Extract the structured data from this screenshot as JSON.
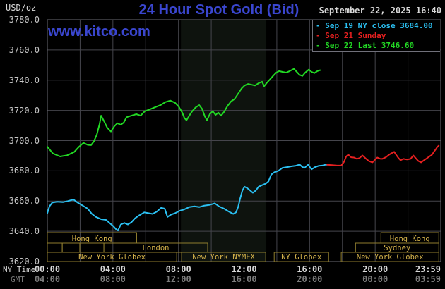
{
  "header": {
    "unit_label": "USD/oz",
    "title": "24 Hour Spot Gold (Bid)",
    "datetime": "September 22, 2025 16:40",
    "watermark": "www.kitco.com"
  },
  "colors": {
    "title_blue": "#3a46cf",
    "sep19_cyan": "#2bc0f2",
    "sep21_red": "#e62020",
    "sep22_green": "#22d824",
    "grid": "#45454c",
    "frame": "#6a6a72",
    "nymex_band": "#0e130e",
    "session_border": "#8f7d2e",
    "session_text": "#d6b44c",
    "axis_text": "#d8d8d8",
    "gmt_text": "#7c7c7c",
    "ylabel_text": "#c8c8c8"
  },
  "legend": {
    "items": [
      {
        "dash": "-",
        "label": " Sep 19 NY close 3684.00",
        "color": "#2bc0f2"
      },
      {
        "dash": "-",
        "label": " Sep 21 Sunday",
        "color": "#e62020"
      },
      {
        "dash": "-",
        "label": " Sep 22 Last 3746.60",
        "color": "#22d824"
      }
    ]
  },
  "axes": {
    "y_ticks": [
      "3780.0",
      "3760.0",
      "3740.0",
      "3720.0",
      "3700.0",
      "3680.0",
      "3660.0",
      "3640.0",
      "3620.0"
    ],
    "x_rows": [
      {
        "label": "NY Time",
        "values": [
          "00:00",
          "04:00",
          "08:00",
          "12:00",
          "16:00",
          "20:00",
          "23:59"
        ]
      },
      {
        "label": "GMT",
        "values": [
          "04:00",
          "08:00",
          "12:00",
          "16:00",
          "20:00",
          "00:00",
          "03:59"
        ]
      }
    ],
    "x_tick_hours": [
      0,
      4,
      8,
      12,
      16,
      20,
      23.98
    ]
  },
  "sessions": {
    "rows": [
      {
        "boxes": [
          {
            "label": "Hong Kong",
            "start": 0,
            "end": 5.45
          },
          {
            "label": "Hong Kong",
            "start": 20.35,
            "end": 23.88
          }
        ]
      },
      {
        "boxes": [
          {
            "label": "",
            "start": 0,
            "end": 0.91
          },
          {
            "label": "",
            "start": 0.91,
            "end": 1.98
          },
          {
            "label": "",
            "start": 1.98,
            "end": 3.45
          },
          {
            "label": "London",
            "start": 3.45,
            "end": 9.78
          },
          {
            "label": "Sydney",
            "start": 18.8,
            "end": 23.88
          }
        ]
      },
      {
        "boxes": [
          {
            "label": "New York Globex",
            "start": 0,
            "end": 7.89
          },
          {
            "label": "New York NYMEX",
            "start": 8.19,
            "end": 13.32
          },
          {
            "label": "NY Globex",
            "start": 13.84,
            "end": 17.16
          },
          {
            "label": "New York Globex",
            "start": 17.93,
            "end": 23.88
          }
        ]
      }
    ]
  },
  "chart_data": {
    "type": "line",
    "title": "24 Hour Spot Gold (Bid)",
    "ylabel": "USD/oz",
    "ylim": [
      3620,
      3780
    ],
    "y_tick_step": 20,
    "x_range_hours": [
      0,
      24
    ],
    "x_axis_label": "NY Time",
    "grid": true,
    "legend_position": "top-right",
    "nymex_session_band_hours": [
      8.15,
      13.36
    ],
    "series": [
      {
        "name": "Sep 19 NY close 3684.00",
        "color": "#2bc0f2",
        "points": [
          [
            0,
            3652
          ],
          [
            0.13,
            3656.5
          ],
          [
            0.3,
            3659
          ],
          [
            0.6,
            3659.5
          ],
          [
            0.95,
            3659.3
          ],
          [
            1.25,
            3660
          ],
          [
            1.59,
            3661
          ],
          [
            1.85,
            3659
          ],
          [
            2.16,
            3657
          ],
          [
            2.46,
            3655
          ],
          [
            2.72,
            3651.5
          ],
          [
            2.97,
            3649.5
          ],
          [
            3.28,
            3648
          ],
          [
            3.58,
            3647.5
          ],
          [
            3.79,
            3645.5
          ],
          [
            4.01,
            3643.5
          ],
          [
            4.18,
            3641.5
          ],
          [
            4.31,
            3640.5
          ],
          [
            4.48,
            3644.5
          ],
          [
            4.7,
            3645.5
          ],
          [
            4.91,
            3644.5
          ],
          [
            5.13,
            3646
          ],
          [
            5.34,
            3648.5
          ],
          [
            5.6,
            3650.5
          ],
          [
            5.91,
            3652.5
          ],
          [
            6.16,
            3652
          ],
          [
            6.42,
            3651.5
          ],
          [
            6.68,
            3653
          ],
          [
            6.94,
            3655.5
          ],
          [
            7.16,
            3655
          ],
          [
            7.33,
            3649.5
          ],
          [
            7.54,
            3651
          ],
          [
            7.8,
            3652
          ],
          [
            8.06,
            3653.5
          ],
          [
            8.36,
            3654.5
          ],
          [
            8.66,
            3656
          ],
          [
            8.97,
            3656.5
          ],
          [
            9.27,
            3656
          ],
          [
            9.57,
            3657
          ],
          [
            9.91,
            3657.5
          ],
          [
            10.22,
            3658.5
          ],
          [
            10.47,
            3656.5
          ],
          [
            10.78,
            3655
          ],
          [
            11.08,
            3653
          ],
          [
            11.34,
            3651.5
          ],
          [
            11.51,
            3652.5
          ],
          [
            11.64,
            3656
          ],
          [
            11.77,
            3662
          ],
          [
            11.9,
            3667
          ],
          [
            12.03,
            3669.5
          ],
          [
            12.2,
            3668.5
          ],
          [
            12.37,
            3667
          ],
          [
            12.54,
            3665.5
          ],
          [
            12.72,
            3667
          ],
          [
            12.89,
            3669.5
          ],
          [
            13.1,
            3670.5
          ],
          [
            13.32,
            3671.5
          ],
          [
            13.49,
            3673
          ],
          [
            13.66,
            3677.5
          ],
          [
            13.84,
            3679
          ],
          [
            14.09,
            3680
          ],
          [
            14.35,
            3682
          ],
          [
            14.66,
            3682.5
          ],
          [
            14.91,
            3683
          ],
          [
            15.13,
            3683.3
          ],
          [
            15.39,
            3684.2
          ],
          [
            15.56,
            3682.5
          ],
          [
            15.69,
            3682
          ],
          [
            15.91,
            3684
          ],
          [
            16.12,
            3681
          ],
          [
            16.34,
            3682.5
          ],
          [
            16.55,
            3683.3
          ],
          [
            16.77,
            3683.5
          ],
          [
            16.94,
            3684
          ],
          [
            17.07,
            3684
          ]
        ]
      },
      {
        "name": "Sep 21 Sunday",
        "color": "#e62020",
        "points": [
          [
            17.07,
            3684
          ],
          [
            17.37,
            3683.8
          ],
          [
            17.67,
            3683.5
          ],
          [
            17.93,
            3683.5
          ],
          [
            18.1,
            3686
          ],
          [
            18.23,
            3689.5
          ],
          [
            18.36,
            3690.7
          ],
          [
            18.53,
            3689
          ],
          [
            18.71,
            3688.8
          ],
          [
            18.88,
            3687.9
          ],
          [
            19.05,
            3688.5
          ],
          [
            19.22,
            3690.2
          ],
          [
            19.44,
            3688
          ],
          [
            19.61,
            3686.5
          ],
          [
            19.83,
            3685.6
          ],
          [
            19.96,
            3687
          ],
          [
            20.13,
            3688.8
          ],
          [
            20.3,
            3688
          ],
          [
            20.43,
            3687.9
          ],
          [
            20.65,
            3689
          ],
          [
            20.82,
            3690.5
          ],
          [
            20.99,
            3691.6
          ],
          [
            21.16,
            3692.6
          ],
          [
            21.29,
            3690.5
          ],
          [
            21.42,
            3688.5
          ],
          [
            21.55,
            3687
          ],
          [
            21.72,
            3687.9
          ],
          [
            21.94,
            3687.5
          ],
          [
            22.16,
            3687.9
          ],
          [
            22.33,
            3690.2
          ],
          [
            22.5,
            3688
          ],
          [
            22.63,
            3686.5
          ],
          [
            22.8,
            3685.6
          ],
          [
            22.97,
            3687
          ],
          [
            23.1,
            3687.9
          ],
          [
            23.28,
            3689.3
          ],
          [
            23.45,
            3690.5
          ],
          [
            23.58,
            3692.6
          ],
          [
            23.71,
            3694.5
          ],
          [
            23.79,
            3695.8
          ],
          [
            23.88,
            3696.7
          ]
        ]
      },
      {
        "name": "Sep 22 Last 3746.60",
        "color": "#22d824",
        "points": [
          [
            0,
            3696
          ],
          [
            0.34,
            3691.5
          ],
          [
            0.78,
            3689.5
          ],
          [
            1.21,
            3690.3
          ],
          [
            1.64,
            3692.5
          ],
          [
            1.94,
            3696
          ],
          [
            2.2,
            3698.5
          ],
          [
            2.46,
            3697.2
          ],
          [
            2.67,
            3697
          ],
          [
            2.84,
            3699.5
          ],
          [
            3.02,
            3704
          ],
          [
            3.19,
            3711
          ],
          [
            3.28,
            3716.5
          ],
          [
            3.45,
            3713
          ],
          [
            3.66,
            3708.5
          ],
          [
            3.88,
            3706
          ],
          [
            4.09,
            3709.5
          ],
          [
            4.27,
            3711.5
          ],
          [
            4.48,
            3710.5
          ],
          [
            4.66,
            3712
          ],
          [
            4.83,
            3715.5
          ],
          [
            5.13,
            3716.5
          ],
          [
            5.43,
            3717.5
          ],
          [
            5.69,
            3716.5
          ],
          [
            5.95,
            3719.5
          ],
          [
            6.21,
            3720.5
          ],
          [
            6.55,
            3722
          ],
          [
            6.9,
            3723.5
          ],
          [
            7.2,
            3725.5
          ],
          [
            7.5,
            3726.5
          ],
          [
            7.8,
            3725
          ],
          [
            8.02,
            3722.5
          ],
          [
            8.23,
            3718.5
          ],
          [
            8.36,
            3715
          ],
          [
            8.49,
            3713.5
          ],
          [
            8.66,
            3716.5
          ],
          [
            8.84,
            3719.5
          ],
          [
            9.05,
            3722
          ],
          [
            9.27,
            3723.5
          ],
          [
            9.44,
            3721
          ],
          [
            9.61,
            3716
          ],
          [
            9.74,
            3713.5
          ],
          [
            9.91,
            3717.5
          ],
          [
            10.09,
            3719.5
          ],
          [
            10.26,
            3717
          ],
          [
            10.43,
            3718.5
          ],
          [
            10.6,
            3716.5
          ],
          [
            10.78,
            3719
          ],
          [
            10.99,
            3723
          ],
          [
            11.21,
            3726
          ],
          [
            11.42,
            3727.5
          ],
          [
            11.64,
            3731
          ],
          [
            11.85,
            3734.5
          ],
          [
            12.03,
            3736.5
          ],
          [
            12.24,
            3737.5
          ],
          [
            12.46,
            3737
          ],
          [
            12.67,
            3736.5
          ],
          [
            12.89,
            3738
          ],
          [
            13.1,
            3739
          ],
          [
            13.23,
            3736
          ],
          [
            13.41,
            3738.5
          ],
          [
            13.58,
            3740.5
          ],
          [
            13.79,
            3743
          ],
          [
            13.97,
            3745
          ],
          [
            14.14,
            3746
          ],
          [
            14.35,
            3745.5
          ],
          [
            14.57,
            3745
          ],
          [
            14.78,
            3746
          ],
          [
            15.04,
            3747.5
          ],
          [
            15.22,
            3745.5
          ],
          [
            15.39,
            3743.5
          ],
          [
            15.56,
            3742.8
          ],
          [
            15.73,
            3745
          ],
          [
            15.95,
            3747
          ],
          [
            16.12,
            3745.5
          ],
          [
            16.29,
            3744.7
          ],
          [
            16.47,
            3746
          ],
          [
            16.64,
            3746.6
          ]
        ]
      }
    ]
  }
}
